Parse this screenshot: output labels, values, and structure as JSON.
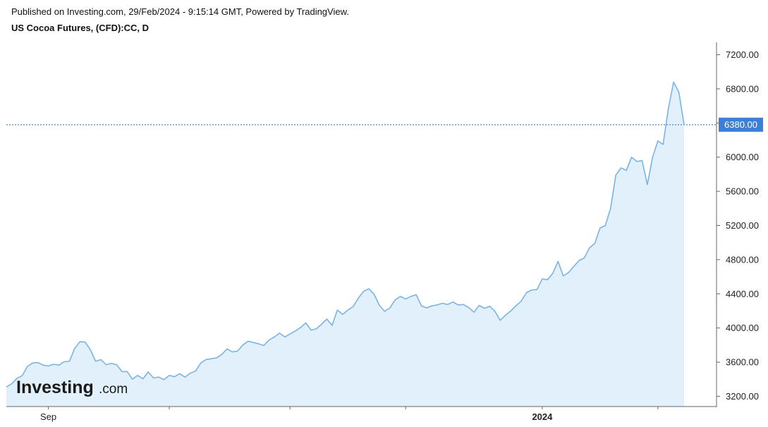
{
  "header": {
    "published": "Published on Investing.com, 29/Feb/2024 - 9:15:14 GMT, Powered by TradingView.",
    "title": "US Cocoa Futures, (CFD):CC, D"
  },
  "logo": {
    "main": "Investing",
    "suffix": ".com"
  },
  "colors": {
    "line": "#7ab4e6",
    "fill": "#e1f0fa",
    "price_tag": "#3d7fd6",
    "current_line": "#2d6fd0",
    "axis": "#666666"
  },
  "chart_data": {
    "type": "area",
    "title": "US Cocoa Futures, (CFD):CC, D",
    "xlabel": "",
    "ylabel": "",
    "ylim": [
      3100,
      7300
    ],
    "y_ticks": [
      "7200.00",
      "6800.00",
      "6400.00",
      "6000.00",
      "5600.00",
      "5200.00",
      "4800.00",
      "4400.00",
      "4000.00",
      "3600.00",
      "3200.00"
    ],
    "y_tick_values": [
      7200,
      6800,
      6400,
      6000,
      5600,
      5200,
      4800,
      4400,
      4000,
      3600,
      3200
    ],
    "x_labels": [
      {
        "text": "Sep",
        "bold": false,
        "index": 8
      },
      {
        "text": "2024",
        "bold": true,
        "index": 102
      }
    ],
    "x_tick_indices": [
      8,
      31,
      54,
      76,
      102,
      124,
      147
    ],
    "current_price": {
      "label": "6380.00",
      "value": 6380
    },
    "values": [
      3310,
      3345,
      3410,
      3440,
      3550,
      3590,
      3595,
      3565,
      3555,
      3575,
      3565,
      3605,
      3610,
      3760,
      3840,
      3835,
      3745,
      3610,
      3630,
      3570,
      3585,
      3570,
      3490,
      3490,
      3400,
      3445,
      3405,
      3485,
      3415,
      3425,
      3395,
      3445,
      3430,
      3465,
      3425,
      3470,
      3495,
      3590,
      3630,
      3640,
      3650,
      3690,
      3755,
      3720,
      3730,
      3800,
      3845,
      3830,
      3815,
      3795,
      3860,
      3895,
      3940,
      3895,
      3930,
      3965,
      4005,
      4060,
      3975,
      3990,
      4045,
      4105,
      4030,
      4210,
      4160,
      4210,
      4250,
      4350,
      4430,
      4460,
      4395,
      4265,
      4195,
      4235,
      4330,
      4370,
      4340,
      4370,
      4390,
      4260,
      4235,
      4260,
      4270,
      4290,
      4275,
      4305,
      4270,
      4275,
      4240,
      4185,
      4265,
      4230,
      4255,
      4195,
      4090,
      4150,
      4200,
      4260,
      4315,
      4415,
      4445,
      4450,
      4575,
      4565,
      4640,
      4780,
      4610,
      4650,
      4720,
      4790,
      4820,
      4940,
      4990,
      5170,
      5200,
      5400,
      5790,
      5875,
      5845,
      6000,
      5950,
      5960,
      5680,
      6000,
      6190,
      6150,
      6570,
      6880,
      6760,
      6380
    ]
  }
}
